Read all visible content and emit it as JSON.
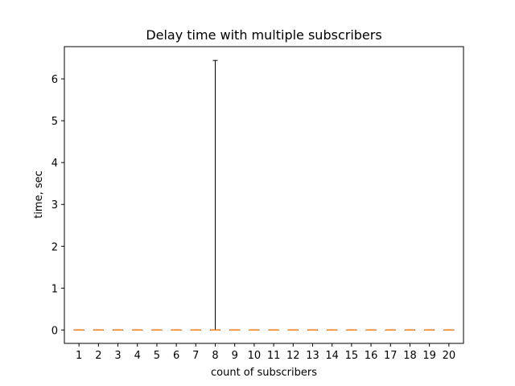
{
  "chart_data": {
    "type": "box",
    "title": "Delay time with multiple subscribers",
    "xlabel": "count of subscribers",
    "ylabel": "time, sec",
    "categories": [
      "1",
      "2",
      "3",
      "4",
      "5",
      "6",
      "7",
      "8",
      "9",
      "10",
      "11",
      "12",
      "13",
      "14",
      "15",
      "16",
      "17",
      "18",
      "19",
      "20"
    ],
    "ylim": [
      -0.32,
      6.77
    ],
    "yticks": [
      0,
      1,
      2,
      3,
      4,
      5,
      6
    ],
    "grid": false,
    "boxes": [
      {
        "median": 0,
        "q1": 0,
        "q3": 0,
        "whisker_low": 0,
        "whisker_high": 0
      },
      {
        "median": 0,
        "q1": 0,
        "q3": 0,
        "whisker_low": 0,
        "whisker_high": 0
      },
      {
        "median": 0,
        "q1": 0,
        "q3": 0,
        "whisker_low": 0,
        "whisker_high": 0
      },
      {
        "median": 0,
        "q1": 0,
        "q3": 0,
        "whisker_low": 0,
        "whisker_high": 0
      },
      {
        "median": 0,
        "q1": 0,
        "q3": 0,
        "whisker_low": 0,
        "whisker_high": 0
      },
      {
        "median": 0,
        "q1": 0,
        "q3": 0,
        "whisker_low": 0,
        "whisker_high": 0
      },
      {
        "median": 0,
        "q1": 0,
        "q3": 0,
        "whisker_low": 0,
        "whisker_high": 0
      },
      {
        "median": 0,
        "q1": 0,
        "q3": 0,
        "whisker_low": 0,
        "whisker_high": 6.44
      },
      {
        "median": 0,
        "q1": 0,
        "q3": 0,
        "whisker_low": 0,
        "whisker_high": 0
      },
      {
        "median": 0,
        "q1": 0,
        "q3": 0,
        "whisker_low": 0,
        "whisker_high": 0
      },
      {
        "median": 0,
        "q1": 0,
        "q3": 0,
        "whisker_low": 0,
        "whisker_high": 0
      },
      {
        "median": 0,
        "q1": 0,
        "q3": 0,
        "whisker_low": 0,
        "whisker_high": 0
      },
      {
        "median": 0,
        "q1": 0,
        "q3": 0,
        "whisker_low": 0,
        "whisker_high": 0
      },
      {
        "median": 0,
        "q1": 0,
        "q3": 0,
        "whisker_low": 0,
        "whisker_high": 0
      },
      {
        "median": 0,
        "q1": 0,
        "q3": 0,
        "whisker_low": 0,
        "whisker_high": 0
      },
      {
        "median": 0,
        "q1": 0,
        "q3": 0,
        "whisker_low": 0,
        "whisker_high": 0
      },
      {
        "median": 0,
        "q1": 0,
        "q3": 0,
        "whisker_low": 0,
        "whisker_high": 0
      },
      {
        "median": 0,
        "q1": 0,
        "q3": 0,
        "whisker_low": 0,
        "whisker_high": 0
      },
      {
        "median": 0,
        "q1": 0,
        "q3": 0,
        "whisker_low": 0,
        "whisker_high": 0
      },
      {
        "median": 0,
        "q1": 0,
        "q3": 0,
        "whisker_low": 0,
        "whisker_high": 0
      }
    ],
    "colors": {
      "box": "#000000",
      "median": "#ff7f0e"
    }
  }
}
